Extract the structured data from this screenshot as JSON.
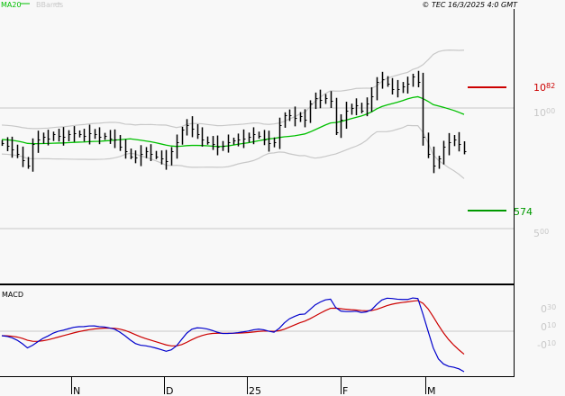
{
  "legend": {
    "ma": "MA20",
    "bbands": "BBands"
  },
  "copyright": "© TEC 16/3/2025 4:0 GMT",
  "colors": {
    "ma": "#00c000",
    "bbands": "#c8c8c8",
    "bars": "#000000",
    "resistance": "#cc0000",
    "support": "#009900",
    "macd": "#0000cc",
    "signal": "#cc0000",
    "grid": "#c8c8c8"
  },
  "chart_data": [
    {
      "type": "ohlc",
      "title": "",
      "indicators": [
        "MA20",
        "BBands"
      ],
      "x_ticks": [
        "N",
        "D",
        "25",
        "F",
        "M"
      ],
      "y_ticks": [
        {
          "int": "10",
          "dec": "00",
          "value": 10.0
        },
        {
          "int": "5",
          "dec": "00",
          "value": 5.0
        }
      ],
      "ylim": [
        4.0,
        12.0
      ],
      "resistance": {
        "label_int": "10",
        "label_dec": "82",
        "value": 10.82
      },
      "support": {
        "label": "574",
        "value": 5.74
      },
      "close": [
        8.55,
        8.45,
        8.3,
        8.1,
        7.85,
        7.6,
        8.5,
        8.7,
        8.8,
        8.75,
        8.9,
        8.85,
        8.8,
        8.9,
        8.95,
        8.9,
        8.85,
        8.95,
        8.9,
        8.8,
        8.85,
        8.75,
        8.7,
        8.4,
        8.2,
        8.0,
        7.95,
        8.1,
        8.2,
        8.1,
        8.0,
        7.9,
        7.8,
        8.2,
        8.6,
        9.1,
        9.3,
        9.15,
        8.9,
        8.7,
        8.6,
        8.5,
        8.4,
        8.45,
        8.6,
        8.65,
        8.7,
        8.75,
        8.8,
        8.9,
        8.85,
        8.7,
        8.55,
        8.6,
        9.3,
        9.7,
        9.7,
        9.6,
        9.65,
        9.5,
        10.2,
        10.4,
        10.35,
        10.4,
        10.3,
        9.0,
        9.5,
        9.9,
        10.0,
        10.1,
        9.9,
        10.2,
        10.5,
        11.1,
        11.2,
        11.0,
        10.8,
        10.8,
        10.9,
        11.0,
        11.3,
        11.1,
        8.8,
        8.1,
        7.6,
        7.9,
        8.4,
        8.6,
        8.7,
        8.5,
        8.2
      ]
    },
    {
      "type": "line",
      "title": "MACD",
      "y_ticks": [
        {
          "int": "0",
          "dec": "30",
          "value": 0.3
        },
        {
          "int": "0",
          "dec": "10",
          "value": 0.1
        },
        {
          "int": "-0",
          "dec": "10",
          "value": -0.1
        }
      ],
      "series": [
        "macd",
        "signal"
      ]
    }
  ]
}
